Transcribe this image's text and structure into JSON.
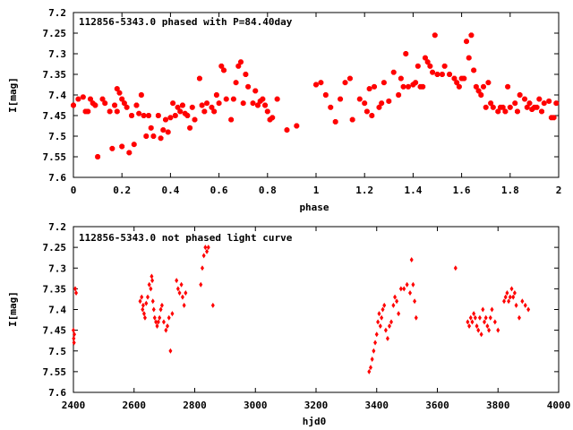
{
  "chart_data": [
    {
      "type": "scatter",
      "title": "112856-5343.0 phased with P=84.40day",
      "xlabel": "phase",
      "ylabel": "I[mag]",
      "xlim": [
        0,
        2
      ],
      "ylim": [
        7.6,
        7.2
      ],
      "xticks": [
        "0",
        "0.2",
        "0.4",
        "0.6",
        "0.8",
        "1",
        "1.2",
        "1.4",
        "1.6",
        "1.8",
        "2"
      ],
      "yticks": [
        "7.2",
        "7.25",
        "7.3",
        "7.35",
        "7.4",
        "7.45",
        "7.5",
        "7.55",
        "7.6"
      ],
      "xtick_values": [
        0,
        0.2,
        0.4,
        0.6,
        0.8,
        1,
        1.2,
        1.4,
        1.6,
        1.8,
        2
      ],
      "ytick_values": [
        7.2,
        7.25,
        7.3,
        7.35,
        7.4,
        7.45,
        7.5,
        7.55,
        7.6
      ],
      "grid": false,
      "legend": "none",
      "marker_color": "#ff0000",
      "marker": "star",
      "series": [
        {
          "x": [
            0.0,
            0.02,
            0.04,
            0.05,
            0.06,
            0.07,
            0.08,
            0.09,
            0.1,
            0.12,
            0.13,
            0.15,
            0.16,
            0.17,
            0.18,
            0.18,
            0.19,
            0.2,
            0.2,
            0.21,
            0.22,
            0.23,
            0.24,
            0.25,
            0.26,
            0.27,
            0.28,
            0.29,
            0.3,
            0.31,
            0.32,
            0.33,
            0.35,
            0.36,
            0.37,
            0.38,
            0.39,
            0.4,
            0.41,
            0.42,
            0.43,
            0.44,
            0.45,
            0.46,
            0.47,
            0.48,
            0.49,
            0.5,
            0.52,
            0.53,
            0.54,
            0.55,
            0.57,
            0.58,
            0.59,
            0.6,
            0.61,
            0.62,
            0.63,
            0.65,
            0.66,
            0.67,
            0.68,
            0.69,
            0.7,
            0.71,
            0.72,
            0.74,
            0.75,
            0.76,
            0.77,
            0.78,
            0.79,
            0.8,
            0.81,
            0.82,
            0.84,
            0.88,
            0.92,
            1.0,
            1.02,
            1.04,
            1.06,
            1.08,
            1.1,
            1.12,
            1.14,
            1.15,
            1.18,
            1.2,
            1.21,
            1.22,
            1.23,
            1.24,
            1.26,
            1.27,
            1.28,
            1.3,
            1.32,
            1.34,
            1.35,
            1.36,
            1.37,
            1.38,
            1.4,
            1.41,
            1.42,
            1.43,
            1.44,
            1.45,
            1.46,
            1.47,
            1.48,
            1.49,
            1.5,
            1.52,
            1.53,
            1.55,
            1.57,
            1.58,
            1.59,
            1.6,
            1.61,
            1.62,
            1.63,
            1.64,
            1.65,
            1.66,
            1.67,
            1.68,
            1.69,
            1.7,
            1.71,
            1.72,
            1.73,
            1.75,
            1.76,
            1.77,
            1.78,
            1.79,
            1.8,
            1.82,
            1.83,
            1.84,
            1.86,
            1.87,
            1.88,
            1.89,
            1.9,
            1.91,
            1.92,
            1.93,
            1.94,
            1.96,
            1.97,
            1.98,
            1.99
          ],
          "y": [
            7.425,
            7.41,
            7.405,
            7.44,
            7.44,
            7.41,
            7.42,
            7.425,
            7.55,
            7.41,
            7.42,
            7.44,
            7.53,
            7.425,
            7.385,
            7.44,
            7.395,
            7.525,
            7.41,
            7.42,
            7.43,
            7.54,
            7.45,
            7.52,
            7.425,
            7.445,
            7.4,
            7.45,
            7.5,
            7.45,
            7.48,
            7.5,
            7.45,
            7.505,
            7.485,
            7.46,
            7.49,
            7.455,
            7.42,
            7.45,
            7.43,
            7.44,
            7.425,
            7.445,
            7.45,
            7.48,
            7.43,
            7.46,
            7.36,
            7.425,
            7.44,
            7.42,
            7.43,
            7.44,
            7.4,
            7.42,
            7.33,
            7.34,
            7.41,
            7.46,
            7.41,
            7.37,
            7.33,
            7.32,
            7.42,
            7.35,
            7.38,
            7.42,
            7.39,
            7.425,
            7.415,
            7.41,
            7.425,
            7.44,
            7.46,
            7.455,
            7.41,
            7.485,
            7.475,
            7.375,
            7.37,
            7.4,
            7.43,
            7.465,
            7.41,
            7.37,
            7.36,
            7.46,
            7.41,
            7.42,
            7.44,
            7.385,
            7.45,
            7.38,
            7.43,
            7.42,
            7.37,
            7.415,
            7.345,
            7.4,
            7.36,
            7.38,
            7.3,
            7.38,
            7.375,
            7.37,
            7.33,
            7.38,
            7.38,
            7.31,
            7.32,
            7.33,
            7.345,
            7.255,
            7.35,
            7.35,
            7.33,
            7.35,
            7.36,
            7.37,
            7.38,
            7.36,
            7.36,
            7.27,
            7.31,
            7.255,
            7.34,
            7.38,
            7.39,
            7.4,
            7.38,
            7.43,
            7.37,
            7.42,
            7.43,
            7.44,
            7.43,
            7.43,
            7.44,
            7.38,
            7.43,
            7.42,
            7.44,
            7.4,
            7.41,
            7.43,
            7.42,
            7.435,
            7.43,
            7.43,
            7.41,
            7.44,
            7.42,
            7.415,
            7.455,
            7.455,
            7.42
          ]
        }
      ]
    },
    {
      "type": "scatter",
      "title": "112856-5343.0 not phased light curve",
      "xlabel": "hjd0",
      "ylabel": "I[mag]",
      "xlim": [
        2400,
        4000
      ],
      "ylim": [
        7.6,
        7.2
      ],
      "xticks": [
        "2400",
        "2600",
        "2800",
        "3000",
        "3200",
        "3400",
        "3600",
        "3800",
        "4000"
      ],
      "yticks": [
        "7.2",
        "7.25",
        "7.3",
        "7.35",
        "7.4",
        "7.45",
        "7.5",
        "7.55",
        "7.6"
      ],
      "xtick_values": [
        2400,
        2600,
        2800,
        3000,
        3200,
        3400,
        3600,
        3800,
        4000
      ],
      "ytick_values": [
        7.2,
        7.25,
        7.3,
        7.35,
        7.4,
        7.45,
        7.5,
        7.55,
        7.6
      ],
      "grid": false,
      "legend": "none",
      "marker_color": "#ff0000",
      "marker": "diamond",
      "series": [
        {
          "x": [
            2400,
            2401,
            2402,
            2403,
            2406,
            2409,
            2620,
            2625,
            2628,
            2630,
            2633,
            2636,
            2640,
            2645,
            2650,
            2655,
            2658,
            2660,
            2662,
            2665,
            2668,
            2672,
            2676,
            2680,
            2684,
            2688,
            2692,
            2698,
            2705,
            2710,
            2715,
            2720,
            2726,
            2740,
            2745,
            2750,
            2756,
            2760,
            2765,
            2770,
            2820,
            2825,
            2830,
            2835,
            2840,
            2845,
            2860,
            3375,
            3380,
            3385,
            3390,
            3395,
            3400,
            3404,
            3408,
            3412,
            3416,
            3420,
            3425,
            3430,
            3436,
            3442,
            3448,
            3455,
            3460,
            3466,
            3472,
            3480,
            3490,
            3500,
            3510,
            3515,
            3520,
            3525,
            3530,
            3660,
            3700,
            3705,
            3710,
            3715,
            3720,
            3725,
            3730,
            3735,
            3740,
            3745,
            3750,
            3755,
            3760,
            3765,
            3770,
            3775,
            3780,
            3790,
            3800,
            3820,
            3825,
            3830,
            3835,
            3840,
            3845,
            3850,
            3855,
            3860,
            3870,
            3880,
            3890,
            3900
          ],
          "y": [
            7.45,
            7.47,
            7.48,
            7.46,
            7.35,
            7.36,
            7.38,
            7.37,
            7.4,
            7.39,
            7.41,
            7.42,
            7.385,
            7.37,
            7.34,
            7.35,
            7.32,
            7.33,
            7.38,
            7.4,
            7.42,
            7.43,
            7.44,
            7.43,
            7.42,
            7.4,
            7.39,
            7.43,
            7.45,
            7.44,
            7.42,
            7.5,
            7.41,
            7.33,
            7.35,
            7.36,
            7.34,
            7.37,
            7.39,
            7.36,
            7.34,
            7.3,
            7.27,
            7.25,
            7.26,
            7.25,
            7.39,
            7.55,
            7.54,
            7.52,
            7.5,
            7.48,
            7.46,
            7.43,
            7.41,
            7.44,
            7.42,
            7.4,
            7.39,
            7.45,
            7.47,
            7.44,
            7.43,
            7.39,
            7.37,
            7.38,
            7.41,
            7.35,
            7.35,
            7.34,
            7.36,
            7.28,
            7.34,
            7.38,
            7.42,
            7.3,
            7.43,
            7.44,
            7.42,
            7.43,
            7.41,
            7.42,
            7.44,
            7.45,
            7.42,
            7.46,
            7.4,
            7.43,
            7.42,
            7.44,
            7.45,
            7.42,
            7.4,
            7.43,
            7.45,
            7.38,
            7.37,
            7.36,
            7.38,
            7.37,
            7.35,
            7.37,
            7.36,
            7.39,
            7.42,
            7.38,
            7.39,
            7.4
          ]
        }
      ]
    }
  ]
}
